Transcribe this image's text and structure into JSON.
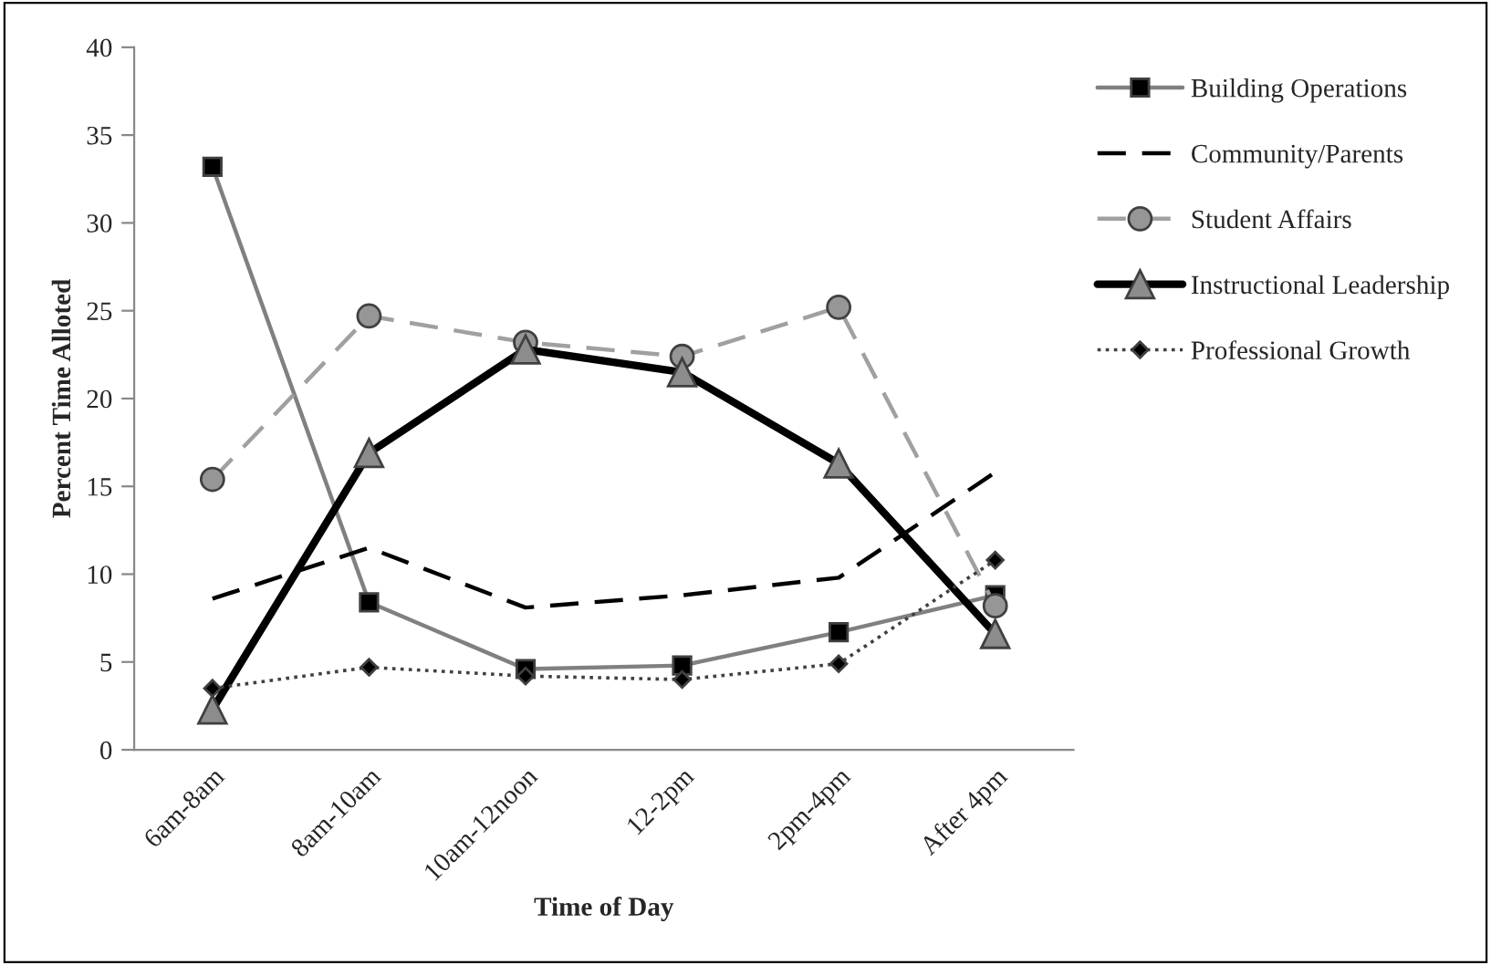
{
  "chart_data": {
    "type": "line",
    "xlabel": "Time of Day",
    "ylabel": "Percent Time Alloted",
    "categories": [
      "6am-8am",
      "8am-10am",
      "10am-12noon",
      "12-2pm",
      "2pm-4pm",
      "After 4pm"
    ],
    "ylim": [
      0,
      40
    ],
    "yticks": [
      0,
      5,
      10,
      15,
      20,
      25,
      30,
      35,
      40
    ],
    "grid": false,
    "legend": "right",
    "series": [
      {
        "name": "Building Operations",
        "color": "#808080",
        "marker": "square",
        "line_style": "solid",
        "values": [
          33.2,
          8.4,
          4.6,
          4.8,
          6.7,
          8.8
        ]
      },
      {
        "name": "Community/Parents",
        "color": "#000000",
        "marker": "none",
        "line_style": "dashed",
        "values": [
          8.6,
          11.5,
          8.1,
          8.8,
          9.8,
          15.8
        ]
      },
      {
        "name": "Student Affairs",
        "color": "#a0a0a0",
        "marker": "circle",
        "line_style": "dashed",
        "values": [
          15.4,
          24.7,
          23.2,
          22.4,
          25.2,
          8.2
        ]
      },
      {
        "name": "Instructional Leadership",
        "color": "#000000",
        "marker": "triangle",
        "line_style": "solid",
        "values": [
          2.3,
          16.9,
          22.8,
          21.5,
          16.3,
          6.6
        ]
      },
      {
        "name": "Professional Growth",
        "color": "#404040",
        "marker": "diamond",
        "line_style": "dotted",
        "values": [
          3.5,
          4.7,
          4.2,
          4.0,
          4.9,
          10.8
        ]
      }
    ]
  }
}
